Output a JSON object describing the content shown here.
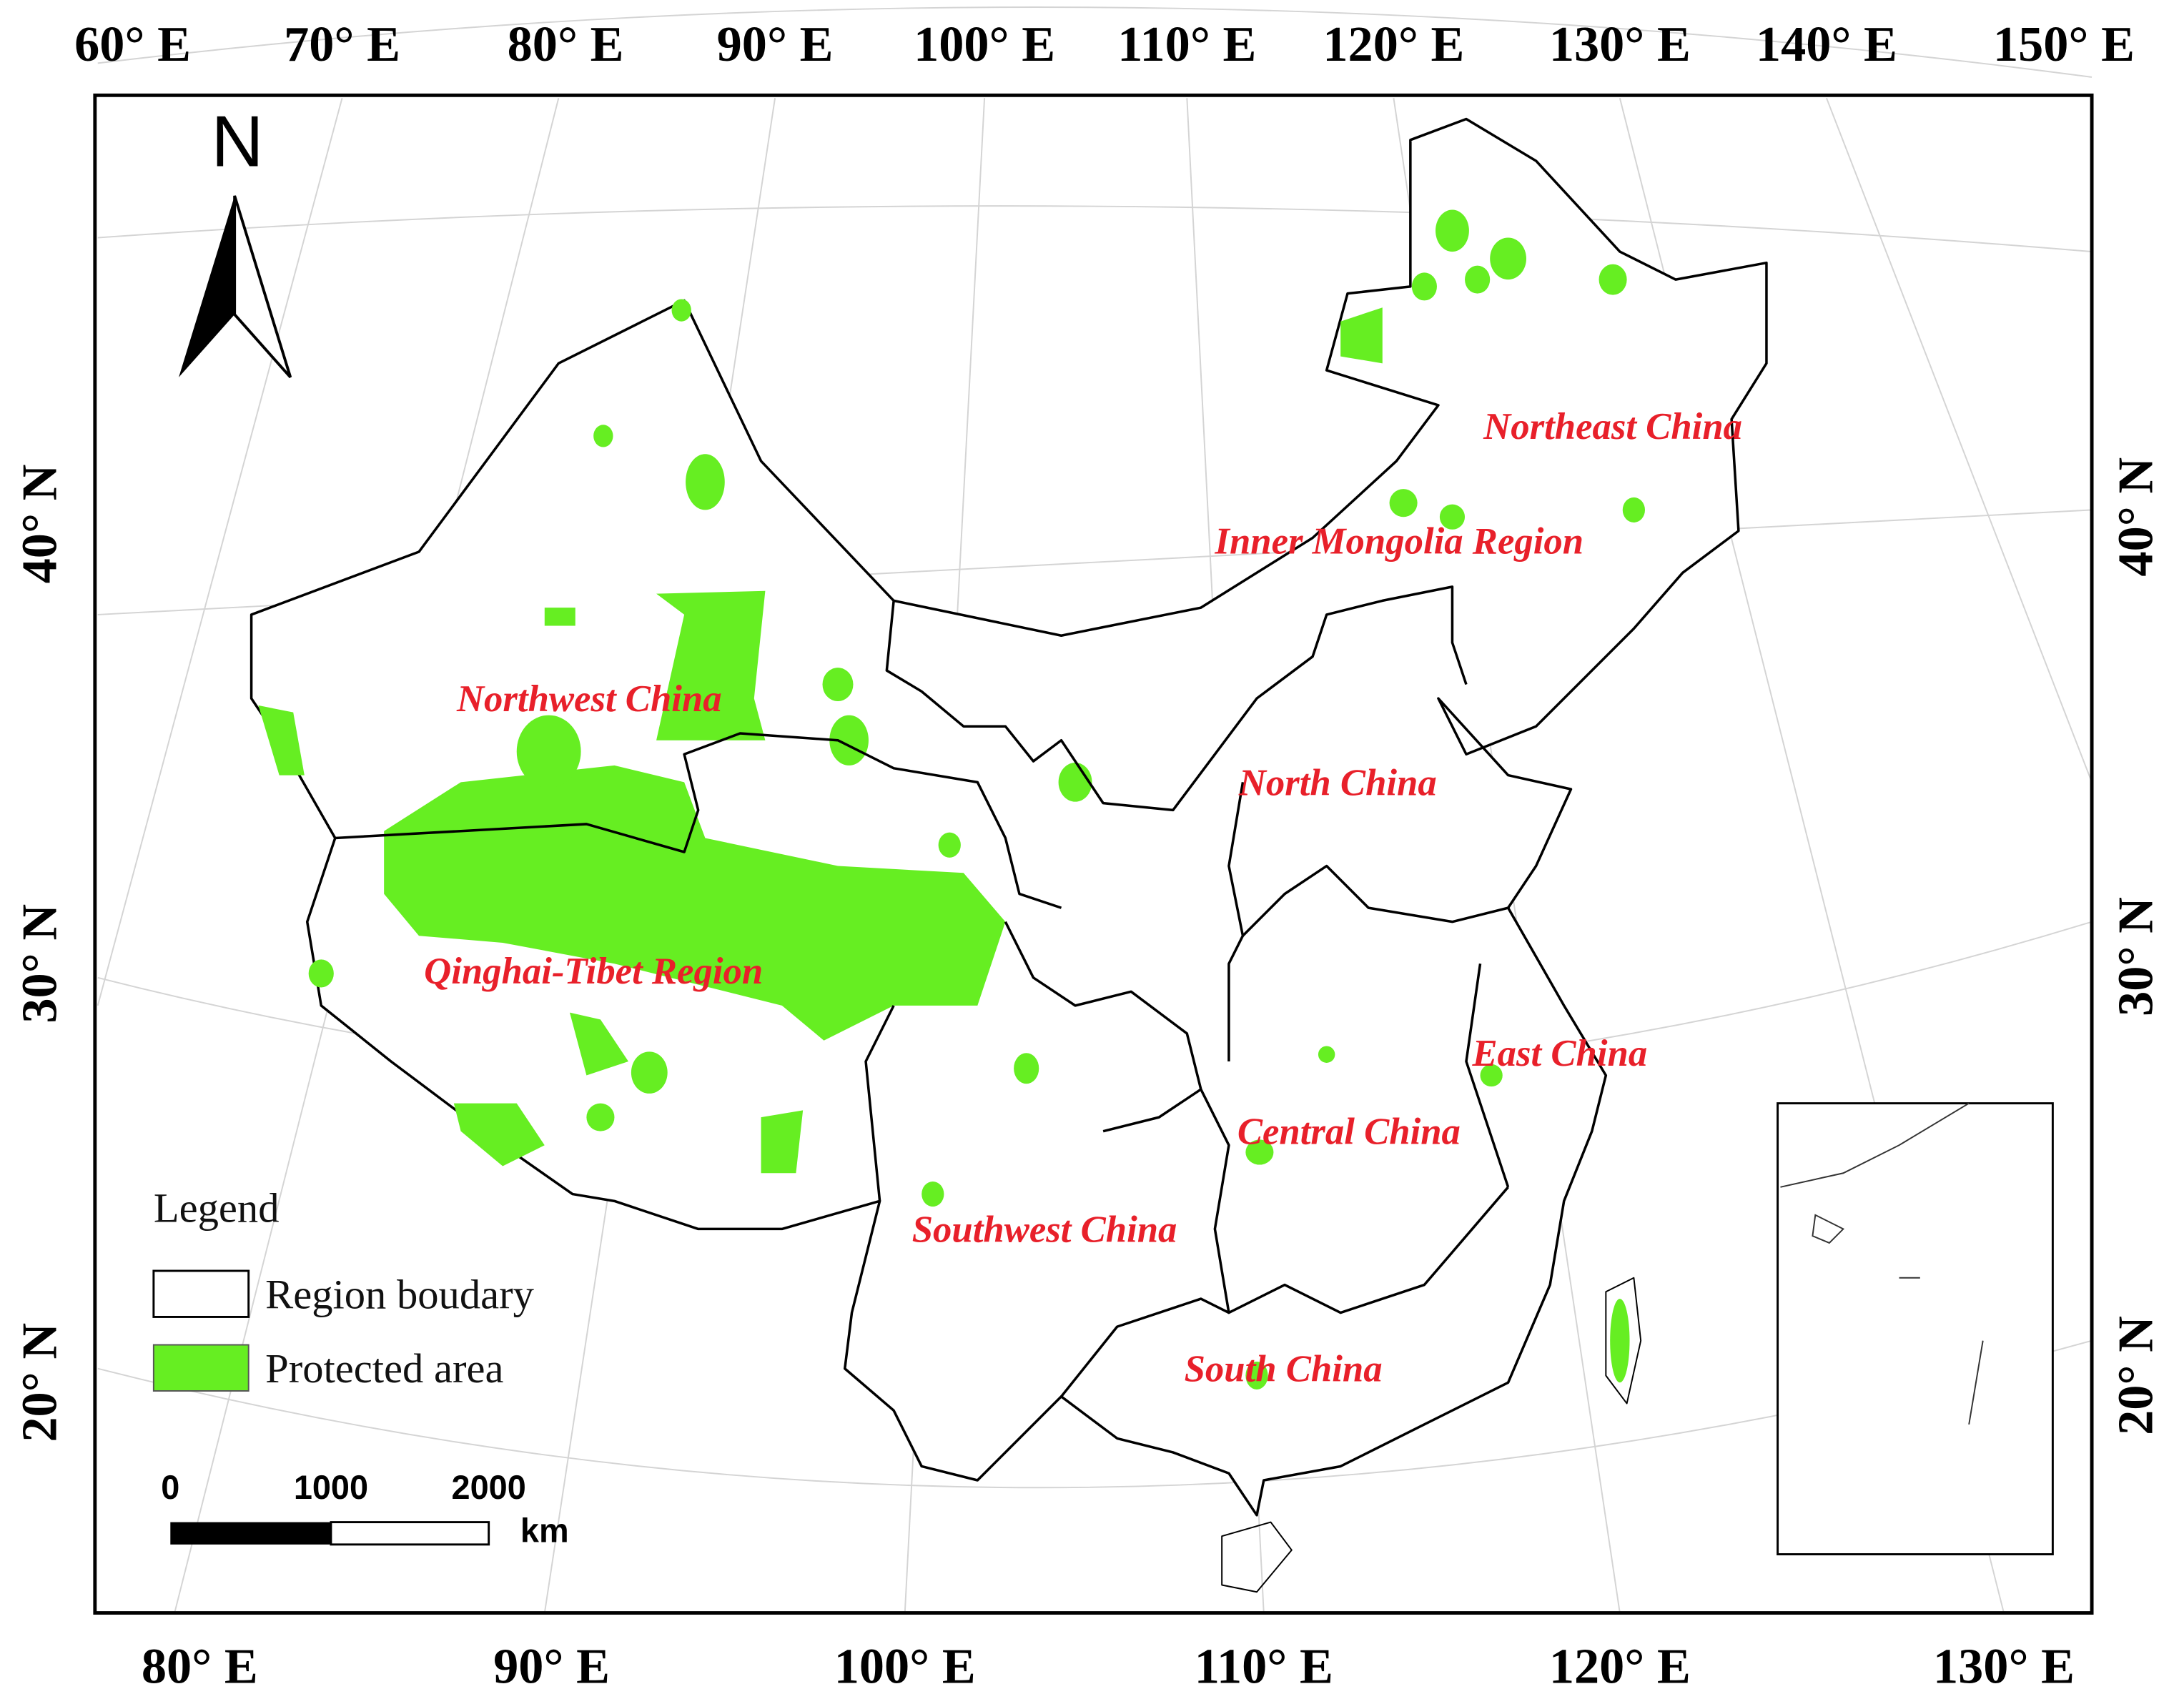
{
  "top_labels": [
    "60° E",
    "70° E",
    "80° E",
    "90° E",
    "100° E",
    "110° E",
    "120° E",
    "130° E",
    "140° E",
    "150° E"
  ],
  "bottom_labels": [
    "80° E",
    "90° E",
    "100° E",
    "110° E",
    "120° E",
    "130° E"
  ],
  "left_labels": [
    "40° N",
    "30° N",
    "20° N"
  ],
  "right_labels": [
    "40° N",
    "30° N",
    "20° N"
  ],
  "regions": [
    "Northeast China",
    "Inner Mongolia Region",
    "Northwest China",
    "North China",
    "Qinghai-Tibet Region",
    "East China",
    "Central China",
    "Southwest China",
    "South China"
  ],
  "north_arrow": {
    "label": "N"
  },
  "legend": {
    "title": "Legend",
    "items": [
      "Region boudary",
      "Protected area"
    ]
  },
  "scale_bar": {
    "labels": [
      "0",
      "1000",
      "2000"
    ],
    "unit": "km"
  }
}
